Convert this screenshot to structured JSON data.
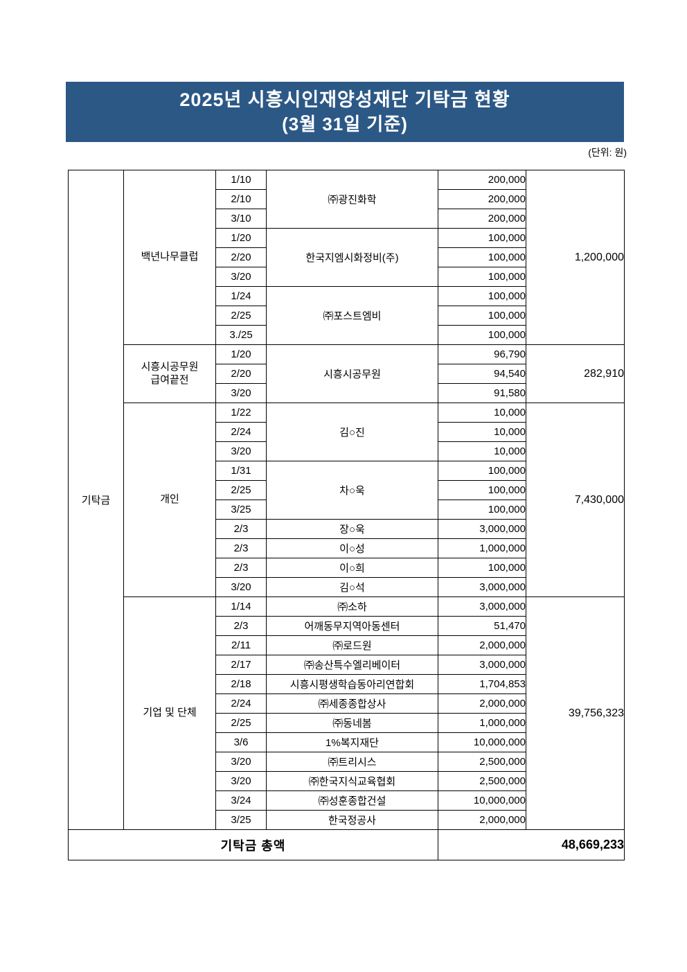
{
  "title": {
    "line1": "2025년 시흥시인재양성재단 기탁금 현황",
    "line2": "(3월 31일 기준)"
  },
  "unit_label": "(단위: 원)",
  "colors": {
    "banner_bg": "#2C5886",
    "banner_text": "#FFFFFF",
    "table_border": "#000000"
  },
  "table": {
    "row_category": "기탁금",
    "sections": [
      {
        "category": "백년나무클럽",
        "subtotal": "1,200,000",
        "groups": [
          {
            "donor": "㈜광진화학",
            "entries": [
              {
                "date": "1/10",
                "amount": "200,000"
              },
              {
                "date": "2/10",
                "amount": "200,000"
              },
              {
                "date": "3/10",
                "amount": "200,000"
              }
            ]
          },
          {
            "donor": "한국지엠시화정비(주)",
            "entries": [
              {
                "date": "1/20",
                "amount": "100,000"
              },
              {
                "date": "2/20",
                "amount": "100,000"
              },
              {
                "date": "3/20",
                "amount": "100,000"
              }
            ]
          },
          {
            "donor": "㈜포스트엠비",
            "entries": [
              {
                "date": "1/24",
                "amount": "100,000"
              },
              {
                "date": "2/25",
                "amount": "100,000"
              },
              {
                "date": "3./25",
                "amount": "100,000"
              }
            ]
          }
        ]
      },
      {
        "category": "시흥시공무원\n급여끝전",
        "subtotal": "282,910",
        "groups": [
          {
            "donor": "시흥시공무원",
            "entries": [
              {
                "date": "1/20",
                "amount": "96,790"
              },
              {
                "date": "2/20",
                "amount": "94,540"
              },
              {
                "date": "3/20",
                "amount": "91,580"
              }
            ]
          }
        ]
      },
      {
        "category": "개인",
        "subtotal": "7,430,000",
        "groups": [
          {
            "donor": "김○진",
            "entries": [
              {
                "date": "1/22",
                "amount": "10,000"
              },
              {
                "date": "2/24",
                "amount": "10,000"
              },
              {
                "date": "3/20",
                "amount": "10,000"
              }
            ]
          },
          {
            "donor": "차○욱",
            "entries": [
              {
                "date": "1/31",
                "amount": "100,000"
              },
              {
                "date": "2/25",
                "amount": "100,000"
              },
              {
                "date": "3/25",
                "amount": "100,000"
              }
            ]
          },
          {
            "donor": "장○욱",
            "entries": [
              {
                "date": "2/3",
                "amount": "3,000,000"
              }
            ]
          },
          {
            "donor": "이○성",
            "entries": [
              {
                "date": "2/3",
                "amount": "1,000,000"
              }
            ]
          },
          {
            "donor": "이○희",
            "entries": [
              {
                "date": "2/3",
                "amount": "100,000"
              }
            ]
          },
          {
            "donor": "김○석",
            "entries": [
              {
                "date": "3/20",
                "amount": "3,000,000"
              }
            ]
          }
        ]
      },
      {
        "category": "기업 및 단체",
        "subtotal": "39,756,323",
        "groups": [
          {
            "donor": "㈜소하",
            "entries": [
              {
                "date": "1/14",
                "amount": "3,000,000"
              }
            ]
          },
          {
            "donor": "어깨동무지역아동센터",
            "entries": [
              {
                "date": "2/3",
                "amount": "51,470"
              }
            ]
          },
          {
            "donor": "㈜로드원",
            "entries": [
              {
                "date": "2/11",
                "amount": "2,000,000"
              }
            ]
          },
          {
            "donor": "㈜송산특수엘리베이터",
            "entries": [
              {
                "date": "2/17",
                "amount": "3,000,000"
              }
            ]
          },
          {
            "donor": "시흥시평생학습동아리연합회",
            "entries": [
              {
                "date": "2/18",
                "amount": "1,704,853"
              }
            ]
          },
          {
            "donor": "㈜세종종합상사",
            "entries": [
              {
                "date": "2/24",
                "amount": "2,000,000"
              }
            ]
          },
          {
            "donor": "㈜동네봄",
            "entries": [
              {
                "date": "2/25",
                "amount": "1,000,000"
              }
            ]
          },
          {
            "donor": "1%복지재단",
            "entries": [
              {
                "date": "3/6",
                "amount": "10,000,000"
              }
            ]
          },
          {
            "donor": "㈜트리시스",
            "entries": [
              {
                "date": "3/20",
                "amount": "2,500,000"
              }
            ]
          },
          {
            "donor": "㈜한국지식교육협회",
            "entries": [
              {
                "date": "3/20",
                "amount": "2,500,000"
              }
            ]
          },
          {
            "donor": "㈜성훈종합건설",
            "entries": [
              {
                "date": "3/24",
                "amount": "10,000,000"
              }
            ]
          },
          {
            "donor": "한국정공사",
            "entries": [
              {
                "date": "3/25",
                "amount": "2,000,000"
              }
            ]
          }
        ]
      }
    ],
    "total": {
      "label": "기탁금 총액",
      "amount": "48,669,233"
    }
  }
}
